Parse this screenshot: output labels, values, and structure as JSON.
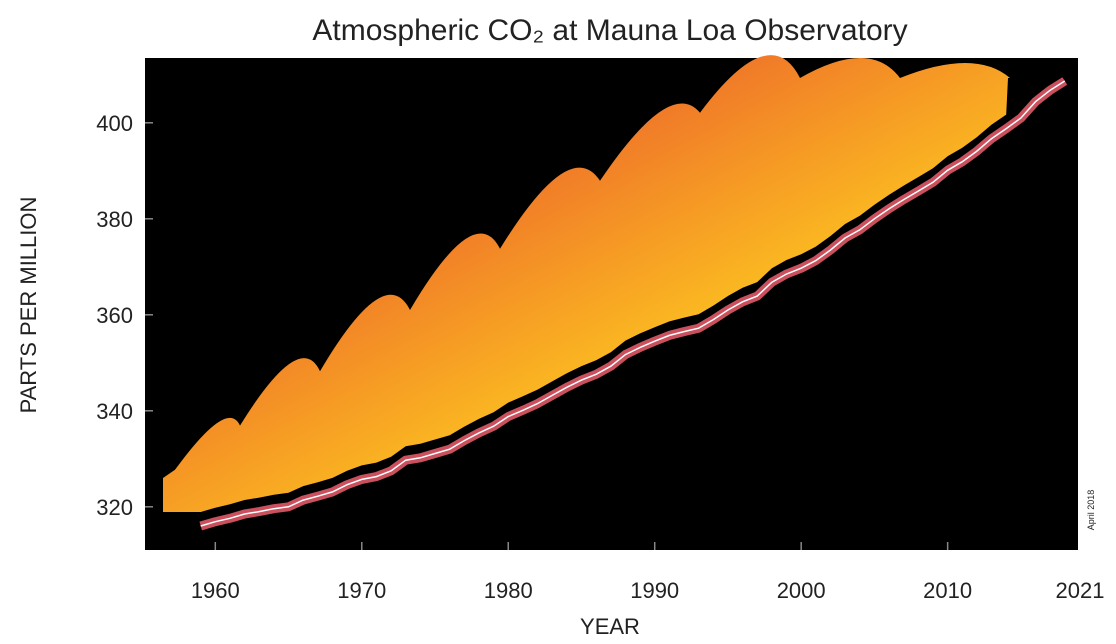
{
  "chart_data": {
    "type": "line",
    "title": "Atmospheric CO₂ at Mauna Loa Observatory",
    "x_label": "YEAR",
    "y_label": "PARTS PER MILLION",
    "annotation": "April 2018",
    "x_end_label": "2021",
    "x": [
      1959,
      1960,
      1961,
      1962,
      1963,
      1964,
      1965,
      1966,
      1967,
      1968,
      1969,
      1970,
      1971,
      1972,
      1973,
      1974,
      1975,
      1976,
      1977,
      1978,
      1979,
      1980,
      1981,
      1982,
      1983,
      1984,
      1985,
      1986,
      1987,
      1988,
      1989,
      1990,
      1991,
      1992,
      1993,
      1994,
      1995,
      1996,
      1997,
      1998,
      1999,
      2000,
      2001,
      2002,
      2003,
      2004,
      2005,
      2006,
      2007,
      2008,
      2009,
      2010,
      2011,
      2012,
      2013,
      2014,
      2015,
      2016,
      2017,
      2018
    ],
    "values": [
      316.0,
      316.9,
      317.6,
      318.5,
      319.0,
      319.6,
      320.0,
      321.4,
      322.2,
      323.1,
      324.6,
      325.7,
      326.3,
      327.5,
      329.7,
      330.2,
      331.1,
      332.0,
      333.8,
      335.4,
      336.8,
      338.8,
      340.1,
      341.5,
      343.2,
      344.9,
      346.4,
      347.6,
      349.3,
      351.7,
      353.2,
      354.5,
      355.7,
      356.5,
      357.2,
      359.0,
      361.0,
      362.7,
      363.9,
      366.8,
      368.5,
      369.7,
      371.3,
      373.5,
      376.0,
      377.7,
      380.0,
      382.1,
      384.0,
      385.8,
      387.6,
      390.1,
      391.9,
      394.1,
      396.7,
      398.8,
      401.0,
      404.4,
      406.8,
      408.7
    ],
    "color": "#c9505c",
    "xlim": [
      1955.2,
      2018.9
    ],
    "ylim": [
      311,
      413.5
    ],
    "xticks": [
      1960,
      1970,
      1980,
      1990,
      2000,
      2010
    ],
    "yticks": [
      320,
      340,
      360,
      380,
      400
    ]
  }
}
